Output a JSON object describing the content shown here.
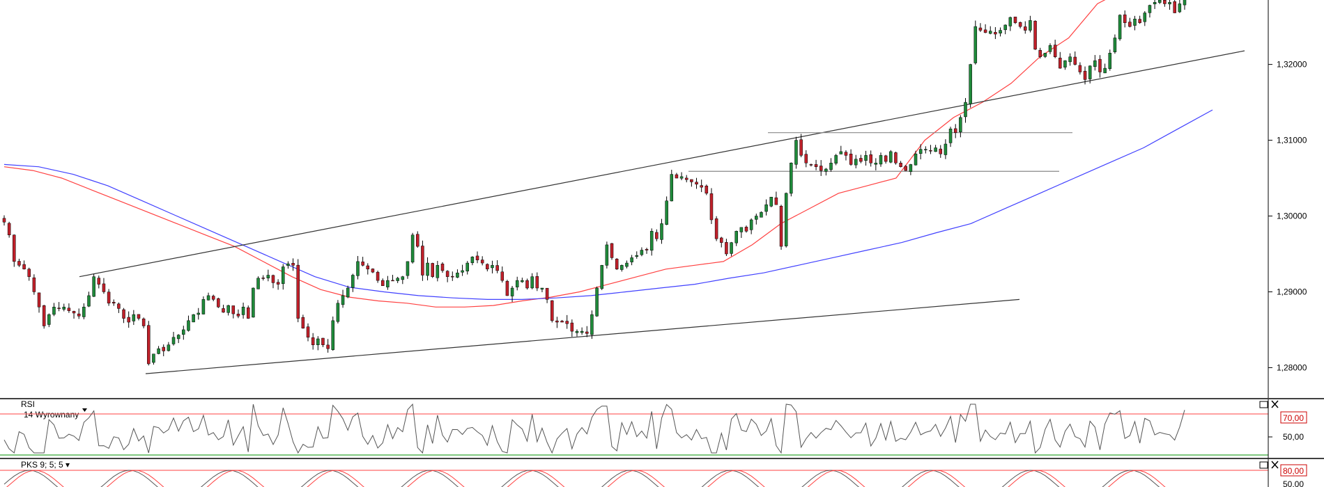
{
  "chart_data": [
    {
      "type": "candlestick",
      "title": "",
      "ylabel": "",
      "y_ticks": [
        "1,28000",
        "1,29000",
        "1,30000",
        "1,31000",
        "1,32000"
      ],
      "ylim": [
        1.276,
        1.3285
      ],
      "ohlc_close_path": [
        1.2992,
        1.2975,
        1.294,
        1.2935,
        1.293,
        1.292,
        1.29,
        1.288,
        1.2855,
        1.287,
        1.288,
        1.2878,
        1.288,
        1.2875,
        1.2872,
        1.2868,
        1.288,
        1.2895,
        1.292,
        1.291,
        1.29,
        1.2885,
        1.2885,
        1.2878,
        1.2865,
        1.286,
        1.287,
        1.2865,
        1.2855,
        1.2805,
        1.2818,
        1.2825,
        1.2822,
        1.283,
        1.284,
        1.2843,
        1.285,
        1.2862,
        1.287,
        1.2872,
        1.289,
        1.2895,
        1.289,
        1.288,
        1.2873,
        1.2882,
        1.2871,
        1.2868,
        1.288,
        1.2865,
        1.2905,
        1.2918,
        1.2918,
        1.2922,
        1.2912,
        1.291,
        1.2933,
        1.2937,
        1.2935,
        1.2865,
        1.2852,
        1.284,
        1.283,
        1.2838,
        1.283,
        1.2825,
        1.2862,
        1.2885,
        1.2895,
        1.2905,
        1.2922,
        1.294,
        1.2935,
        1.293,
        1.2926,
        1.2915,
        1.2908,
        1.2915,
        1.2915,
        1.2918,
        1.292,
        1.294,
        1.2975,
        1.296,
        1.2922,
        1.2938,
        1.292,
        1.2935,
        1.2928,
        1.292,
        1.292,
        1.2925,
        1.2928,
        1.2938,
        1.2946,
        1.2942,
        1.2938,
        1.293,
        1.2935,
        1.2928,
        1.2915,
        1.2895,
        1.2905,
        1.2915,
        1.2915,
        1.2905,
        1.292,
        1.2905,
        1.2905,
        1.289,
        1.2862,
        1.286,
        1.286,
        1.2858,
        1.2848,
        1.2848,
        1.2848,
        1.2845,
        1.287,
        1.2905,
        1.2935,
        1.2962,
        1.2945,
        1.293,
        1.2935,
        1.2938,
        1.2945,
        1.2948,
        1.2955,
        1.2955,
        1.298,
        1.297,
        1.299,
        1.302,
        1.3055,
        1.305,
        1.3052,
        1.3048,
        1.3045,
        1.3042,
        1.3038,
        1.303,
        1.2995,
        1.297,
        1.2965,
        1.295,
        1.2965,
        1.298,
        1.2985,
        1.298,
        1.2995,
        1.3,
        1.3005,
        1.3015,
        1.3025,
        1.3015,
        1.296,
        1.303,
        1.307,
        1.31,
        1.308,
        1.307,
        1.3068,
        1.3065,
        1.306,
        1.3062,
        1.307,
        1.308,
        1.3085,
        1.308,
        1.3068,
        1.3075,
        1.3072,
        1.308,
        1.307,
        1.307,
        1.308,
        1.3072,
        1.3085,
        1.307,
        1.3065,
        1.306,
        1.3068,
        1.3082,
        1.3088,
        1.3088,
        1.3086,
        1.309,
        1.3082,
        1.3095,
        1.3115,
        1.311,
        1.313,
        1.315,
        1.32,
        1.325,
        1.3245,
        1.3242,
        1.3244,
        1.324,
        1.3245,
        1.3252,
        1.3262,
        1.3255,
        1.325,
        1.3245,
        1.3258,
        1.322,
        1.321,
        1.3215,
        1.3225,
        1.321,
        1.3195,
        1.3205,
        1.321,
        1.32,
        1.319,
        1.318,
        1.3198,
        1.3205,
        1.319,
        1.3195,
        1.3215,
        1.3235,
        1.3265,
        1.3255,
        1.325,
        1.326,
        1.3255,
        1.3268,
        1.3278,
        1.3282,
        1.3285,
        1.328,
        1.3282,
        1.3268,
        1.328,
        1.33
      ],
      "series": [
        {
          "values": [
            1.3065,
            1.306,
            1.305,
            1.3035,
            1.302,
            1.3005,
            1.299,
            1.2975,
            1.296,
            1.294,
            1.292,
            1.2903,
            1.2893,
            1.2888,
            1.2885,
            1.288,
            1.288,
            1.2882,
            1.2888,
            1.2893,
            1.29,
            1.291,
            1.292,
            1.293,
            1.2935,
            1.294,
            1.2962,
            1.299,
            1.301,
            1.303,
            1.304,
            1.305,
            1.31,
            1.313,
            1.315,
            1.3175,
            1.321,
            1.3235,
            1.328,
            1.33
          ],
          "x_index": [
            0,
            10,
            20,
            30,
            40,
            50,
            60,
            70,
            80,
            90,
            100,
            110,
            120,
            130,
            140,
            150,
            160,
            170,
            180,
            190,
            200,
            210,
            220,
            230,
            240,
            250,
            260,
            270,
            280,
            290,
            300,
            310,
            320,
            330,
            340,
            350,
            360,
            370,
            380,
            390
          ],
          "color": "#ff4040"
        },
        {
          "values": [
            1.3068,
            1.3065,
            1.3055,
            1.304,
            1.302,
            1.3,
            1.298,
            1.296,
            1.294,
            1.292,
            1.2906,
            1.29,
            1.2895,
            1.2892,
            1.289,
            1.289,
            1.2892,
            1.2895,
            1.29,
            1.2905,
            1.291,
            1.2918,
            1.2925,
            1.2935,
            1.2945,
            1.2955,
            1.2965,
            1.2978,
            1.299,
            1.301,
            1.303,
            1.305,
            1.307,
            1.309,
            1.3115,
            1.314
          ],
          "x_index": [
            0,
            12,
            24,
            36,
            48,
            60,
            72,
            84,
            96,
            108,
            120,
            132,
            144,
            156,
            168,
            180,
            192,
            204,
            216,
            228,
            240,
            252,
            264,
            276,
            288,
            300,
            312,
            324,
            336,
            348,
            360,
            372,
            384,
            396,
            408,
            420
          ],
          "color": "#4040ff"
        }
      ],
      "trendlines": [
        {
          "from": [
            1.292,
            0.06
          ],
          "to": [
            1.3218,
            0.94
          ],
          "color": "#333333"
        },
        {
          "from": [
            1.2792,
            0.11
          ],
          "to": [
            1.289,
            0.77
          ],
          "color": "#333333"
        },
        {
          "from": [
            1.311,
            0.58
          ],
          "to": [
            1.311,
            0.81
          ],
          "color": "#888888"
        },
        {
          "from": [
            1.3059,
            0.52
          ],
          "to": [
            1.3059,
            0.8
          ],
          "color": "#888888"
        }
      ]
    },
    {
      "type": "line",
      "indicator": "RSI",
      "params_label": "14 Wyrownany",
      "levels": [
        "70,00",
        "50,00"
      ],
      "ylim": [
        25,
        85
      ],
      "level_values": [
        70,
        30
      ],
      "colors": {
        "line": "#555555",
        "upper": "#ff4040",
        "lower": "#009000"
      }
    },
    {
      "type": "line",
      "indicator": "PKS 9; 5; 5",
      "levels": [
        "80,00",
        "50,00"
      ],
      "level_values": [
        80
      ],
      "colors": {
        "k": "#555555",
        "d": "#ff4040",
        "level": "#ff4040"
      }
    }
  ],
  "legends": {
    "rsi": "RSI",
    "rsi_params": "14 Wyrownany",
    "pks": "PKS 9; 5; 5 ▾"
  },
  "icons": [
    "maximize-icon",
    "close-icon"
  ]
}
